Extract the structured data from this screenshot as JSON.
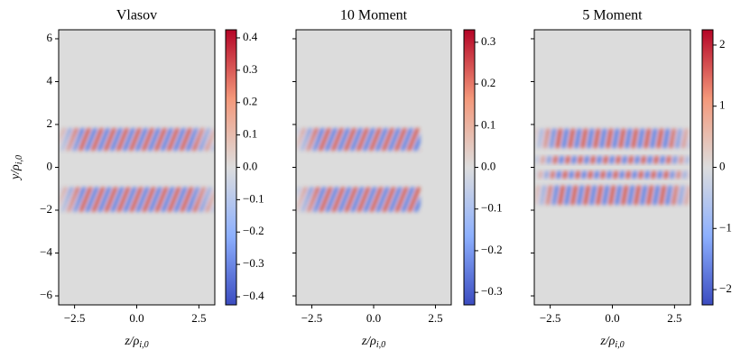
{
  "chart_data": [
    {
      "type": "heatmap",
      "title": "Vlasov",
      "xlabel": "z/ρi,0",
      "ylabel": "y/ρi,0",
      "xlim": [
        -3.14,
        3.14
      ],
      "xticks": [
        {
          "value": -2.5,
          "label": "−2.5"
        },
        {
          "value": 0,
          "label": "0.0"
        },
        2.5
      ],
      "ylim": [
        -6.42,
        6.42
      ],
      "yticks": [
        {
          "value": -6,
          "label": "−6"
        },
        {
          "value": -4,
          "label": "−4"
        },
        {
          "value": -2,
          "label": "−2"
        },
        0,
        2,
        4,
        6
      ],
      "ytick_labels": true,
      "colormap": "coolwarm",
      "clim": [
        -0.425,
        0.425
      ],
      "cticks": [
        {
          "value": -0.4,
          "label": "−0.4"
        },
        {
          "value": -0.3,
          "label": "−0.3"
        },
        {
          "value": -0.2,
          "label": "−0.2"
        },
        {
          "value": -0.1,
          "label": "−0.1"
        },
        {
          "value": 0,
          "label": "0.0"
        },
        0.1,
        0.2,
        0.3,
        0.4
      ]
    },
    {
      "type": "heatmap",
      "title": "10 Moment",
      "xlabel": "z/ρi,0",
      "xlim": [
        -3.14,
        3.14
      ],
      "xticks": [
        {
          "value": -2.5,
          "label": "−2.5"
        },
        {
          "value": 0,
          "label": "0.0"
        },
        2.5
      ],
      "ylim": [
        -6.42,
        6.42
      ],
      "yticks": [
        -6,
        -4,
        -2,
        0,
        2,
        4,
        6
      ],
      "ytick_labels": false,
      "colormap": "coolwarm",
      "clim": [
        -0.33,
        0.33
      ],
      "cticks": [
        {
          "value": -0.3,
          "label": "−0.3"
        },
        {
          "value": -0.2,
          "label": "−0.2"
        },
        {
          "value": -0.1,
          "label": "−0.1"
        },
        {
          "value": 0,
          "label": "0.0"
        },
        0.1,
        0.2,
        0.3
      ]
    },
    {
      "type": "heatmap",
      "title": "5 Moment",
      "xlabel": "z/ρi,0",
      "xlim": [
        -3.14,
        3.14
      ],
      "xticks": [
        {
          "value": -2.5,
          "label": "−2.5"
        },
        {
          "value": 0,
          "label": "0.0"
        },
        2.5
      ],
      "ylim": [
        -6.42,
        6.42
      ],
      "yticks": [
        -6,
        -4,
        -2,
        0,
        2,
        4,
        6
      ],
      "ytick_labels": false,
      "colormap": "coolwarm",
      "clim": [
        -2.25,
        2.25
      ],
      "cticks": [
        {
          "value": -2,
          "label": "−2"
        },
        {
          "value": -1,
          "label": "−1"
        },
        0,
        1,
        2
      ]
    }
  ]
}
